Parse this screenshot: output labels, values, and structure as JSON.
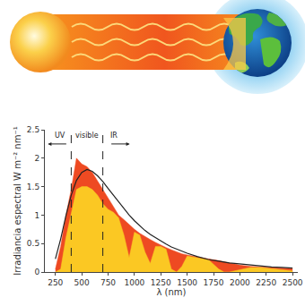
{
  "chart_data": {
    "type": "area",
    "xlabel": "λ (nm)",
    "ylabel": "Irradiancia espectral W m⁻² nm⁻¹",
    "x": [
      250,
      300,
      350,
      400,
      450,
      500,
      550,
      600,
      650,
      700,
      750,
      800,
      850,
      900,
      950,
      1000,
      1050,
      1100,
      1150,
      1200,
      1250,
      1300,
      1350,
      1400,
      1450,
      1500,
      1600,
      1700,
      1800,
      1850,
      1900,
      1950,
      2000,
      2100,
      2200,
      2300,
      2400,
      2500
    ],
    "series": [
      {
        "type": "area",
        "color": "#ee4a22",
        "values": [
          0.05,
          0.45,
          1.0,
          1.45,
          2.0,
          1.9,
          1.85,
          1.75,
          1.6,
          1.45,
          1.3,
          1.15,
          1.0,
          0.92,
          0.83,
          0.75,
          0.68,
          0.62,
          0.57,
          0.52,
          0.47,
          0.43,
          0.39,
          0.35,
          0.32,
          0.3,
          0.26,
          0.23,
          0.2,
          0.18,
          0.16,
          0.14,
          0.12,
          0.1,
          0.09,
          0.08,
          0.07,
          0.06
        ]
      },
      {
        "type": "area",
        "color": "#fbc823",
        "values": [
          0,
          0.05,
          0.6,
          1.0,
          1.45,
          1.5,
          1.5,
          1.45,
          1.35,
          1.2,
          1.1,
          1.05,
          0.95,
          0.65,
          0.25,
          0.7,
          0.65,
          0.35,
          0.15,
          0.45,
          0.45,
          0.4,
          0.05,
          0,
          0.1,
          0.28,
          0.25,
          0.22,
          0.05,
          0,
          0,
          0.02,
          0.05,
          0.08,
          0.08,
          0.06,
          0.03,
          0.02
        ]
      },
      {
        "type": "line",
        "color": "#222222",
        "values": [
          0.23,
          0.58,
          0.99,
          1.35,
          1.61,
          1.75,
          1.8,
          1.77,
          1.69,
          1.59,
          1.47,
          1.35,
          1.23,
          1.11,
          1.0,
          0.9,
          0.81,
          0.73,
          0.66,
          0.6,
          0.54,
          0.49,
          0.44,
          0.4,
          0.36,
          0.33,
          0.27,
          0.22,
          0.19,
          0.17,
          0.16,
          0.15,
          0.14,
          0.12,
          0.1,
          0.09,
          0.08,
          0.07
        ]
      }
    ],
    "xlim": [
      150,
      2550
    ],
    "xticks": [
      250,
      500,
      750,
      1000,
      1250,
      1500,
      1750,
      2000,
      2250,
      2500
    ],
    "ylim": [
      0,
      2.5
    ],
    "yticks": [
      0,
      0.5,
      1,
      1.5,
      2,
      2.5
    ],
    "vlines": {
      "x": [
        400,
        700
      ],
      "line_style": "dashed"
    },
    "annotations": [
      {
        "text": "UV"
      },
      {
        "text": "visible"
      },
      {
        "text": "IR"
      }
    ],
    "grid": false
  }
}
